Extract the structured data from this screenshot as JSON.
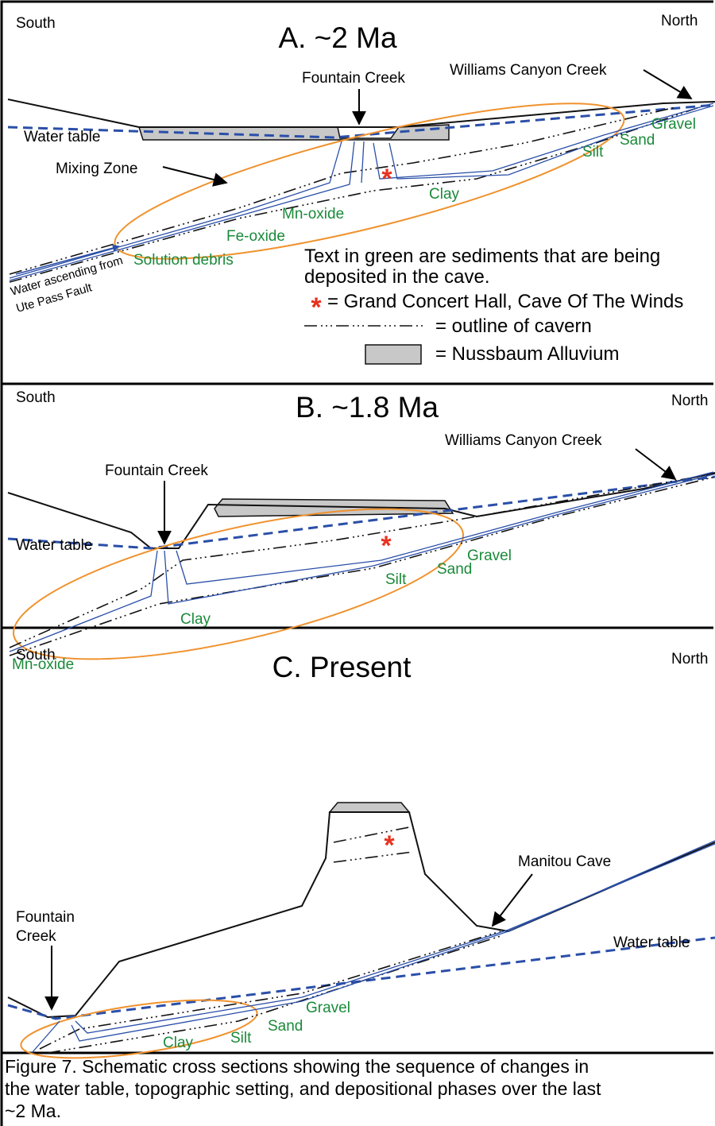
{
  "panels": [
    {
      "title": "A.  ~2 Ma",
      "left": "South",
      "right": "North",
      "labels": [
        "Fountain Creek",
        "Williams Canyon Creek",
        "Water table",
        "Mixing Zone"
      ],
      "sediments": [
        "Gravel",
        "Sand",
        "Silt",
        "Clay",
        "Mn-oxide",
        "Fe-oxide",
        "Solution debris"
      ],
      "inflow": [
        "Water ascending from",
        "Ute Pass Fault"
      ]
    },
    {
      "title": "B.  ~1.8 Ma",
      "left": "South",
      "right": "North",
      "labels": [
        "Williams Canyon Creek",
        "Fountain Creek",
        "Water table"
      ],
      "sediments": [
        "Gravel",
        "Sand",
        "Silt",
        "Clay",
        "Mn-oxide"
      ]
    },
    {
      "title": "C.  Present",
      "left": "South",
      "right": "North",
      "labels": [
        "Manitou Cave",
        "Fountain",
        "Creek",
        "Water table"
      ],
      "sediments": [
        "Gravel",
        "Sand",
        "Silt",
        "Clay"
      ]
    }
  ],
  "legend": {
    "note": [
      "Text in green are sediments that are being",
      "deposited in the cave."
    ],
    "items": [
      "= Grand Concert Hall, Cave Of The Winds",
      "= outline of cavern",
      "= Nussbaum Alluvium"
    ]
  },
  "caption": [
    "Figure 7.  Schematic cross sections showing the sequence of changes in",
    "the water table, topographic setting, and depositional phases over the last",
    "~2 Ma."
  ]
}
